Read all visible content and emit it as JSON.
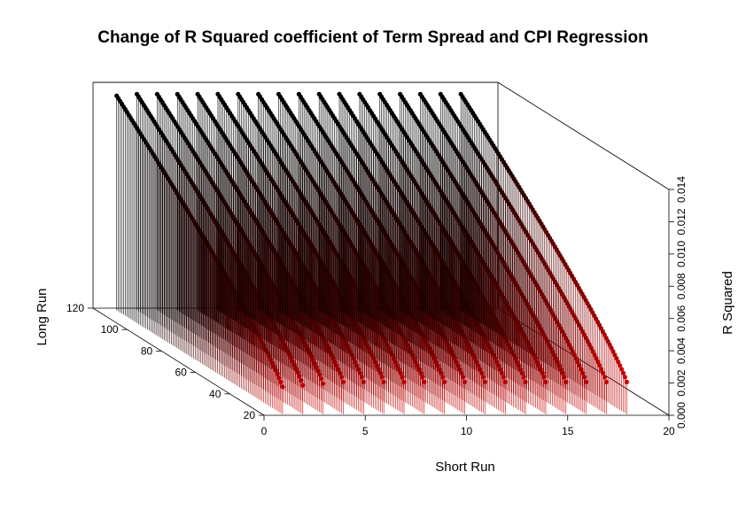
{
  "chart_data": {
    "type": "scatter3d-histogram",
    "title": "Change of R Squared coefficient of Term Spread and CPI Regression",
    "xlabel": "Short Run",
    "ylabel": "Long Run",
    "zlabel": "R Squared",
    "xlim": [
      0,
      20
    ],
    "ylim": [
      20,
      120
    ],
    "zlim": [
      0,
      0.014
    ],
    "x_ticks": [
      "0",
      "5",
      "10",
      "15",
      "20"
    ],
    "y_ticks": [
      "20",
      "40",
      "60",
      "80",
      "100",
      "120"
    ],
    "z_ticks": [
      "0.000",
      "0.002",
      "0.004",
      "0.006",
      "0.008",
      "0.010",
      "0.012",
      "0.014"
    ],
    "color_low": "#ff0000",
    "color_high": "#000000",
    "series": [
      {
        "short_run": 1,
        "long_run_range": [
          21,
          118
        ],
        "r2_at_long_min": 0.0017,
        "r2_at_long_max": 0.0133
      },
      {
        "short_run": 2,
        "long_run_range": [
          21,
          118
        ],
        "r2_at_long_min": 0.0018,
        "r2_at_long_max": 0.0134
      },
      {
        "short_run": 3,
        "long_run_range": [
          21,
          118
        ],
        "r2_at_long_min": 0.0019,
        "r2_at_long_max": 0.0134
      },
      {
        "short_run": 4,
        "long_run_range": [
          21,
          118
        ],
        "r2_at_long_min": 0.002,
        "r2_at_long_max": 0.0134
      },
      {
        "short_run": 5,
        "long_run_range": [
          21,
          118
        ],
        "r2_at_long_min": 0.002,
        "r2_at_long_max": 0.0134
      },
      {
        "short_run": 6,
        "long_run_range": [
          21,
          118
        ],
        "r2_at_long_min": 0.002,
        "r2_at_long_max": 0.0134
      },
      {
        "short_run": 7,
        "long_run_range": [
          21,
          118
        ],
        "r2_at_long_min": 0.002,
        "r2_at_long_max": 0.0134
      },
      {
        "short_run": 8,
        "long_run_range": [
          21,
          118
        ],
        "r2_at_long_min": 0.002,
        "r2_at_long_max": 0.0134
      },
      {
        "short_run": 9,
        "long_run_range": [
          21,
          118
        ],
        "r2_at_long_min": 0.002,
        "r2_at_long_max": 0.0134
      },
      {
        "short_run": 10,
        "long_run_range": [
          21,
          118
        ],
        "r2_at_long_min": 0.002,
        "r2_at_long_max": 0.0134
      },
      {
        "short_run": 11,
        "long_run_range": [
          21,
          118
        ],
        "r2_at_long_min": 0.002,
        "r2_at_long_max": 0.0134
      },
      {
        "short_run": 12,
        "long_run_range": [
          21,
          118
        ],
        "r2_at_long_min": 0.002,
        "r2_at_long_max": 0.0134
      },
      {
        "short_run": 13,
        "long_run_range": [
          21,
          118
        ],
        "r2_at_long_min": 0.002,
        "r2_at_long_max": 0.0134
      },
      {
        "short_run": 14,
        "long_run_range": [
          21,
          118
        ],
        "r2_at_long_min": 0.002,
        "r2_at_long_max": 0.0134
      },
      {
        "short_run": 15,
        "long_run_range": [
          21,
          118
        ],
        "r2_at_long_min": 0.002,
        "r2_at_long_max": 0.0134
      },
      {
        "short_run": 16,
        "long_run_range": [
          21,
          118
        ],
        "r2_at_long_min": 0.002,
        "r2_at_long_max": 0.0134
      },
      {
        "short_run": 17,
        "long_run_range": [
          21,
          118
        ],
        "r2_at_long_min": 0.002,
        "r2_at_long_max": 0.0134
      },
      {
        "short_run": 18,
        "long_run_range": [
          21,
          118
        ],
        "r2_at_long_min": 0.002,
        "r2_at_long_max": 0.0134
      }
    ]
  }
}
